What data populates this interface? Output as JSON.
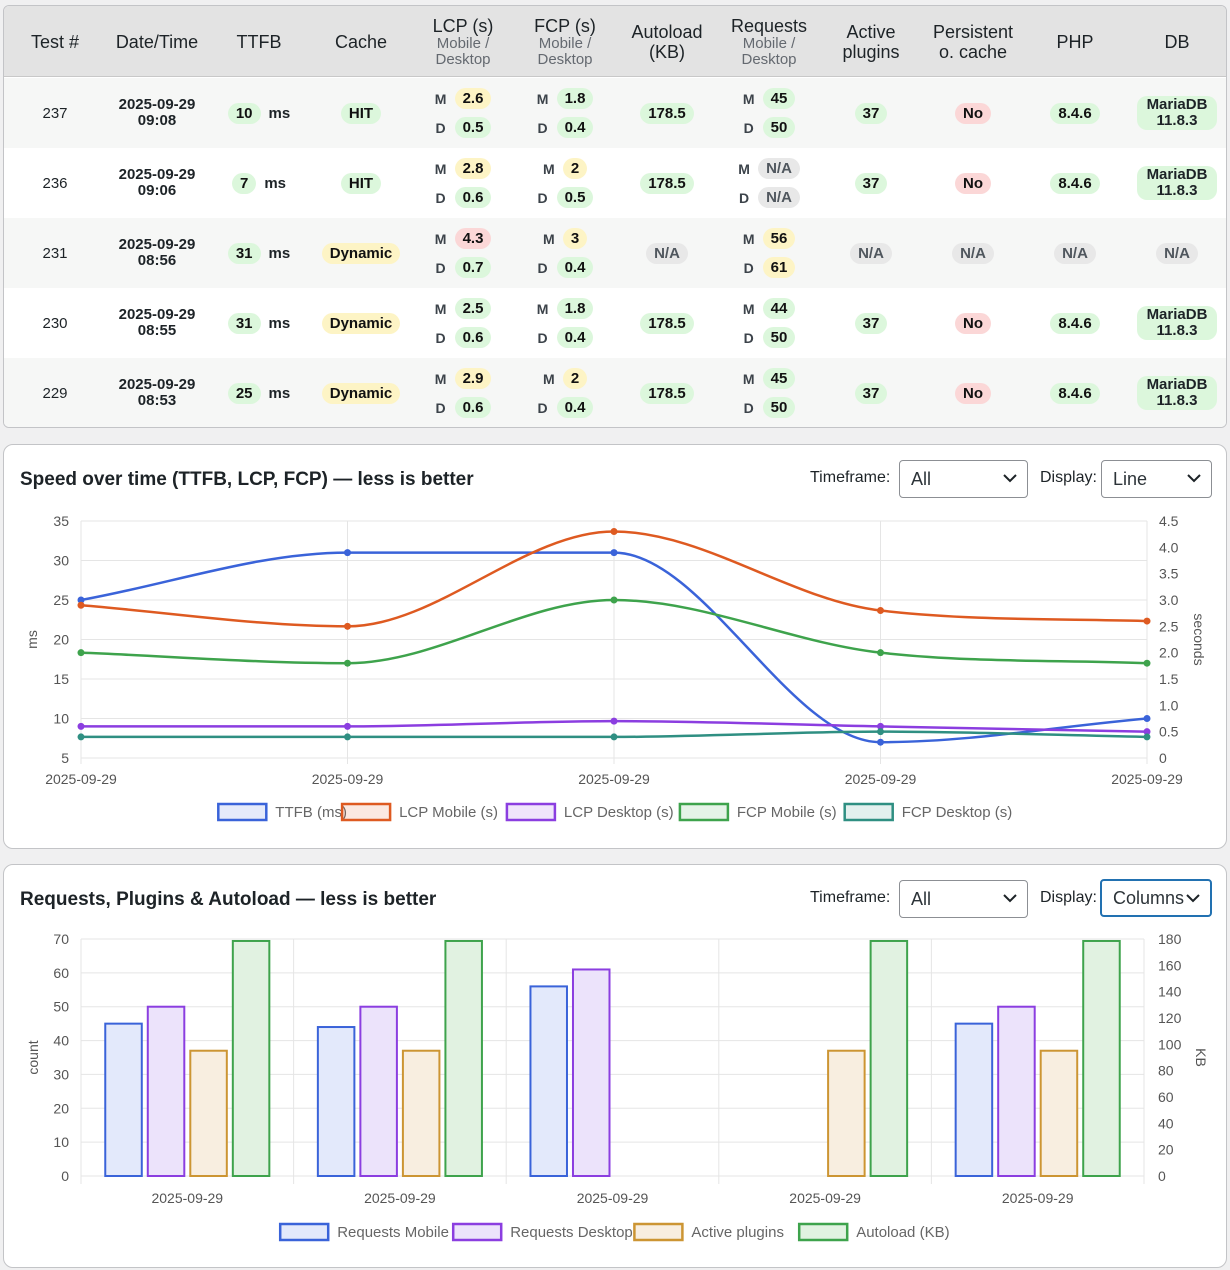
{
  "table": {
    "headers": [
      {
        "title": "Test #",
        "sub": ""
      },
      {
        "title": "Date/Time",
        "sub": ""
      },
      {
        "title": "TTFB",
        "sub": ""
      },
      {
        "title": "Cache",
        "sub": ""
      },
      {
        "title": "LCP (s)",
        "sub": "Mobile / Desktop"
      },
      {
        "title": "FCP (s)",
        "sub": "Mobile / Desktop"
      },
      {
        "title": "Autoload (KB)",
        "sub": ""
      },
      {
        "title": "Requests",
        "sub": "Mobile / Desktop"
      },
      {
        "title": "Active plugins",
        "sub": ""
      },
      {
        "title": "Persistent o. cache",
        "sub": ""
      },
      {
        "title": "PHP",
        "sub": ""
      },
      {
        "title": "DB",
        "sub": ""
      }
    ],
    "mobile_marker": "M",
    "desktop_marker": "D",
    "ttfb_unit": "ms",
    "rows": [
      {
        "test": "237",
        "date": "2025-09-29",
        "time": "09:08",
        "ttfb": "10",
        "cache": "HIT",
        "cache_status": "green",
        "lcp_m": "2.6",
        "lcp_m_status": "yellow",
        "lcp_d": "0.5",
        "lcp_d_status": "green",
        "fcp_m": "1.8",
        "fcp_m_status": "green",
        "fcp_d": "0.4",
        "fcp_d_status": "green",
        "autoload": "178.5",
        "autoload_status": "green",
        "req_m": "45",
        "req_m_status": "green",
        "req_d": "50",
        "req_d_status": "green",
        "plugins": "37",
        "plugins_status": "green",
        "poc": "No",
        "poc_status": "red",
        "php": "8.4.6",
        "php_status": "green",
        "db": "MariaDB 11.8.3",
        "db_line1": "MariaDB",
        "db_line2": "11.8.3",
        "db_status": "green"
      },
      {
        "test": "236",
        "date": "2025-09-29",
        "time": "09:06",
        "ttfb": "7",
        "cache": "HIT",
        "cache_status": "green",
        "lcp_m": "2.8",
        "lcp_m_status": "yellow",
        "lcp_d": "0.6",
        "lcp_d_status": "green",
        "fcp_m": "2",
        "fcp_m_status": "yellow",
        "fcp_d": "0.5",
        "fcp_d_status": "green",
        "autoload": "178.5",
        "autoload_status": "green",
        "req_m": "N/A",
        "req_m_status": "gray",
        "req_d": "N/A",
        "req_d_status": "gray",
        "plugins": "37",
        "plugins_status": "green",
        "poc": "No",
        "poc_status": "red",
        "php": "8.4.6",
        "php_status": "green",
        "db": "MariaDB 11.8.3",
        "db_line1": "MariaDB",
        "db_line2": "11.8.3",
        "db_status": "green"
      },
      {
        "test": "231",
        "date": "2025-09-29",
        "time": "08:56",
        "ttfb": "31",
        "cache": "Dynamic",
        "cache_status": "yellow",
        "lcp_m": "4.3",
        "lcp_m_status": "red",
        "lcp_d": "0.7",
        "lcp_d_status": "green",
        "fcp_m": "3",
        "fcp_m_status": "yellow",
        "fcp_d": "0.4",
        "fcp_d_status": "green",
        "autoload": "N/A",
        "autoload_status": "gray",
        "req_m": "56",
        "req_m_status": "yellow",
        "req_d": "61",
        "req_d_status": "yellow",
        "plugins": "N/A",
        "plugins_status": "gray",
        "poc": "N/A",
        "poc_status": "gray",
        "php": "N/A",
        "php_status": "gray",
        "db": "N/A",
        "db_line1": "N/A",
        "db_line2": "",
        "db_status": "gray"
      },
      {
        "test": "230",
        "date": "2025-09-29",
        "time": "08:55",
        "ttfb": "31",
        "cache": "Dynamic",
        "cache_status": "yellow",
        "lcp_m": "2.5",
        "lcp_m_status": "green",
        "lcp_d": "0.6",
        "lcp_d_status": "green",
        "fcp_m": "1.8",
        "fcp_m_status": "green",
        "fcp_d": "0.4",
        "fcp_d_status": "green",
        "autoload": "178.5",
        "autoload_status": "green",
        "req_m": "44",
        "req_m_status": "green",
        "req_d": "50",
        "req_d_status": "green",
        "plugins": "37",
        "plugins_status": "green",
        "poc": "No",
        "poc_status": "red",
        "php": "8.4.6",
        "php_status": "green",
        "db": "MariaDB 11.8.3",
        "db_line1": "MariaDB",
        "db_line2": "11.8.3",
        "db_status": "green"
      },
      {
        "test": "229",
        "date": "2025-09-29",
        "time": "08:53",
        "ttfb": "25",
        "cache": "Dynamic",
        "cache_status": "yellow",
        "lcp_m": "2.9",
        "lcp_m_status": "yellow",
        "lcp_d": "0.6",
        "lcp_d_status": "green",
        "fcp_m": "2",
        "fcp_m_status": "yellow",
        "fcp_d": "0.4",
        "fcp_d_status": "green",
        "autoload": "178.5",
        "autoload_status": "green",
        "req_m": "45",
        "req_m_status": "green",
        "req_d": "50",
        "req_d_status": "green",
        "plugins": "37",
        "plugins_status": "green",
        "poc": "No",
        "poc_status": "red",
        "php": "8.4.6",
        "php_status": "green",
        "db": "MariaDB 11.8.3",
        "db_line1": "MariaDB",
        "db_line2": "11.8.3",
        "db_status": "green"
      }
    ]
  },
  "speed_panel": {
    "title": "Speed over time (TTFB, LCP, FCP) — less is better",
    "timeframe_label": "Timeframe:",
    "timeframe_value": "All",
    "display_label": "Display:",
    "display_value": "Line"
  },
  "requests_panel": {
    "title": "Requests, Plugins & Autoload — less is better",
    "timeframe_label": "Timeframe:",
    "timeframe_value": "All",
    "display_label": "Display:",
    "display_value": "Columns"
  },
  "chart_data": [
    {
      "type": "line",
      "x": [
        "2025-09-29",
        "2025-09-29",
        "2025-09-29",
        "2025-09-29",
        "2025-09-29"
      ],
      "ylabel": "ms",
      "y2label": "seconds",
      "ylim": [
        5,
        35
      ],
      "yticks": [
        5,
        10,
        15,
        20,
        25,
        30,
        35
      ],
      "y2lim": [
        0,
        4.5
      ],
      "y2ticks": [
        "0",
        "0.5",
        "1.0",
        "1.5",
        "2.0",
        "2.5",
        "3.0",
        "3.5",
        "4.0",
        "4.5"
      ],
      "grid": true,
      "legend": "bottom",
      "series": [
        {
          "name": "TTFB (ms)",
          "axis": "left",
          "color": "#3a63d9",
          "values": [
            25,
            31,
            31,
            7,
            10
          ]
        },
        {
          "name": "LCP Mobile (s)",
          "axis": "right",
          "color": "#de5a21",
          "values": [
            2.9,
            2.5,
            4.3,
            2.8,
            2.6
          ]
        },
        {
          "name": "LCP Desktop (s)",
          "axis": "right",
          "color": "#8b3ee0",
          "values": [
            0.6,
            0.6,
            0.7,
            0.6,
            0.5
          ]
        },
        {
          "name": "FCP Mobile (s)",
          "axis": "right",
          "color": "#3ea34c",
          "values": [
            2.0,
            1.8,
            3.0,
            2.0,
            1.8
          ]
        },
        {
          "name": "FCP Desktop (s)",
          "axis": "right",
          "color": "#2f8f82",
          "values": [
            0.4,
            0.4,
            0.4,
            0.5,
            0.4
          ]
        }
      ]
    },
    {
      "type": "bar",
      "categories": [
        "2025-09-29",
        "2025-09-29",
        "2025-09-29",
        "2025-09-29",
        "2025-09-29"
      ],
      "ylabel": "count",
      "y2label": "KB",
      "ylim": [
        0,
        70
      ],
      "yticks": [
        0,
        10,
        20,
        30,
        40,
        50,
        60,
        70
      ],
      "y2lim": [
        0,
        180
      ],
      "y2ticks": [
        0,
        20,
        40,
        60,
        80,
        100,
        120,
        140,
        160,
        180
      ],
      "grid": true,
      "legend": "bottom",
      "series": [
        {
          "name": "Requests Mobile",
          "axis": "left",
          "color": "#3a63d9",
          "fill": "#e3e9fb",
          "values": [
            45,
            44,
            56,
            null,
            45
          ]
        },
        {
          "name": "Requests Desktop",
          "axis": "left",
          "color": "#8b3ee0",
          "fill": "#ece3fb",
          "values": [
            50,
            50,
            61,
            null,
            50
          ]
        },
        {
          "name": "Active plugins",
          "axis": "left",
          "color": "#cc9533",
          "fill": "#f8eee0",
          "values": [
            37,
            37,
            null,
            37,
            37
          ]
        },
        {
          "name": "Autoload (KB)",
          "axis": "right",
          "color": "#3ea34c",
          "fill": "#e1f2e1",
          "values": [
            178.5,
            178.5,
            null,
            178.5,
            178.5
          ]
        }
      ]
    }
  ]
}
